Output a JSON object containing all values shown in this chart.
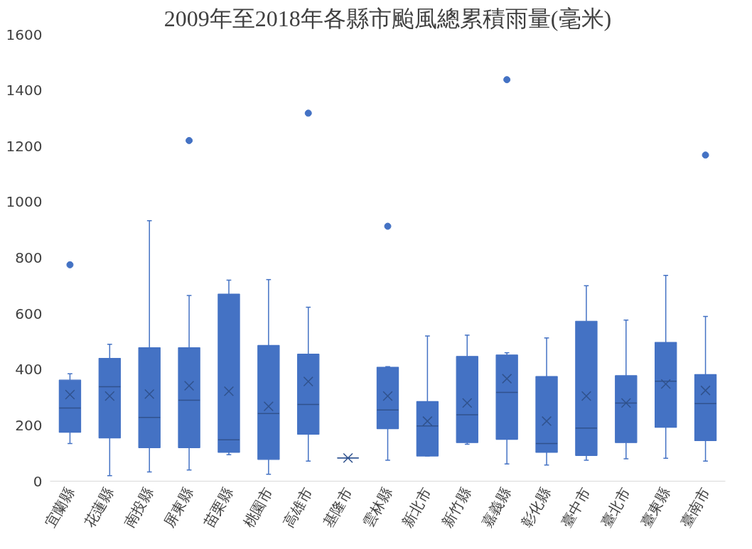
{
  "chart_data": {
    "type": "box",
    "title": "2009年至2018年各縣市颱風總累積雨量(毫米)",
    "color": "#4472c4",
    "ylim": [
      0,
      1600
    ],
    "yticks": [
      0,
      200,
      400,
      600,
      800,
      1000,
      1200,
      1400,
      1600
    ],
    "categories": [
      "宜蘭縣",
      "花蓮縣",
      "南投縣",
      "屏東縣",
      "苗栗縣",
      "桃園市",
      "高雄市",
      "基隆市",
      "雲林縣",
      "新北市",
      "新竹縣",
      "嘉義縣",
      "彰化縣",
      "臺中市",
      "臺北市",
      "臺東縣",
      "臺南市"
    ],
    "boxes": [
      {
        "low": 135,
        "q1": 175,
        "median": 262,
        "q3": 362,
        "high": 385,
        "mean": 310,
        "outliers": [
          775
        ]
      },
      {
        "low": 20,
        "q1": 155,
        "median": 338,
        "q3": 440,
        "high": 490,
        "mean": 305
      },
      {
        "low": 33,
        "q1": 120,
        "median": 228,
        "q3": 478,
        "high": 933,
        "mean": 312
      },
      {
        "low": 40,
        "q1": 120,
        "median": 290,
        "q3": 478,
        "high": 665,
        "mean": 342,
        "outliers": [
          1220
        ]
      },
      {
        "low": 95,
        "q1": 103,
        "median": 148,
        "q3": 670,
        "high": 720,
        "mean": 322
      },
      {
        "low": 25,
        "q1": 78,
        "median": 242,
        "q3": 486,
        "high": 722,
        "mean": 268
      },
      {
        "low": 72,
        "q1": 168,
        "median": 275,
        "q3": 455,
        "high": 623,
        "mean": 357,
        "outliers": [
          1318
        ]
      },
      {
        "low": 83,
        "q1": 83,
        "median": 83,
        "q3": 83,
        "high": 83,
        "mean": 83
      },
      {
        "low": 75,
        "q1": 188,
        "median": 255,
        "q3": 408,
        "high": 410,
        "mean": 305,
        "outliers": [
          913
        ]
      },
      {
        "low": 90,
        "q1": 90,
        "median": 198,
        "q3": 285,
        "high": 520,
        "mean": 215
      },
      {
        "low": 132,
        "q1": 138,
        "median": 238,
        "q3": 447,
        "high": 523,
        "mean": 280
      },
      {
        "low": 62,
        "q1": 150,
        "median": 318,
        "q3": 452,
        "high": 460,
        "mean": 367,
        "outliers": [
          1438
        ]
      },
      {
        "low": 58,
        "q1": 103,
        "median": 135,
        "q3": 375,
        "high": 513,
        "mean": 215
      },
      {
        "low": 75,
        "q1": 92,
        "median": 190,
        "q3": 573,
        "high": 700,
        "mean": 305
      },
      {
        "low": 80,
        "q1": 138,
        "median": 280,
        "q3": 378,
        "high": 577,
        "mean": 280
      },
      {
        "low": 82,
        "q1": 193,
        "median": 358,
        "q3": 497,
        "high": 737,
        "mean": 348
      },
      {
        "low": 72,
        "q1": 145,
        "median": 278,
        "q3": 382,
        "high": 590,
        "mean": 325,
        "outliers": [
          1168
        ]
      }
    ]
  }
}
